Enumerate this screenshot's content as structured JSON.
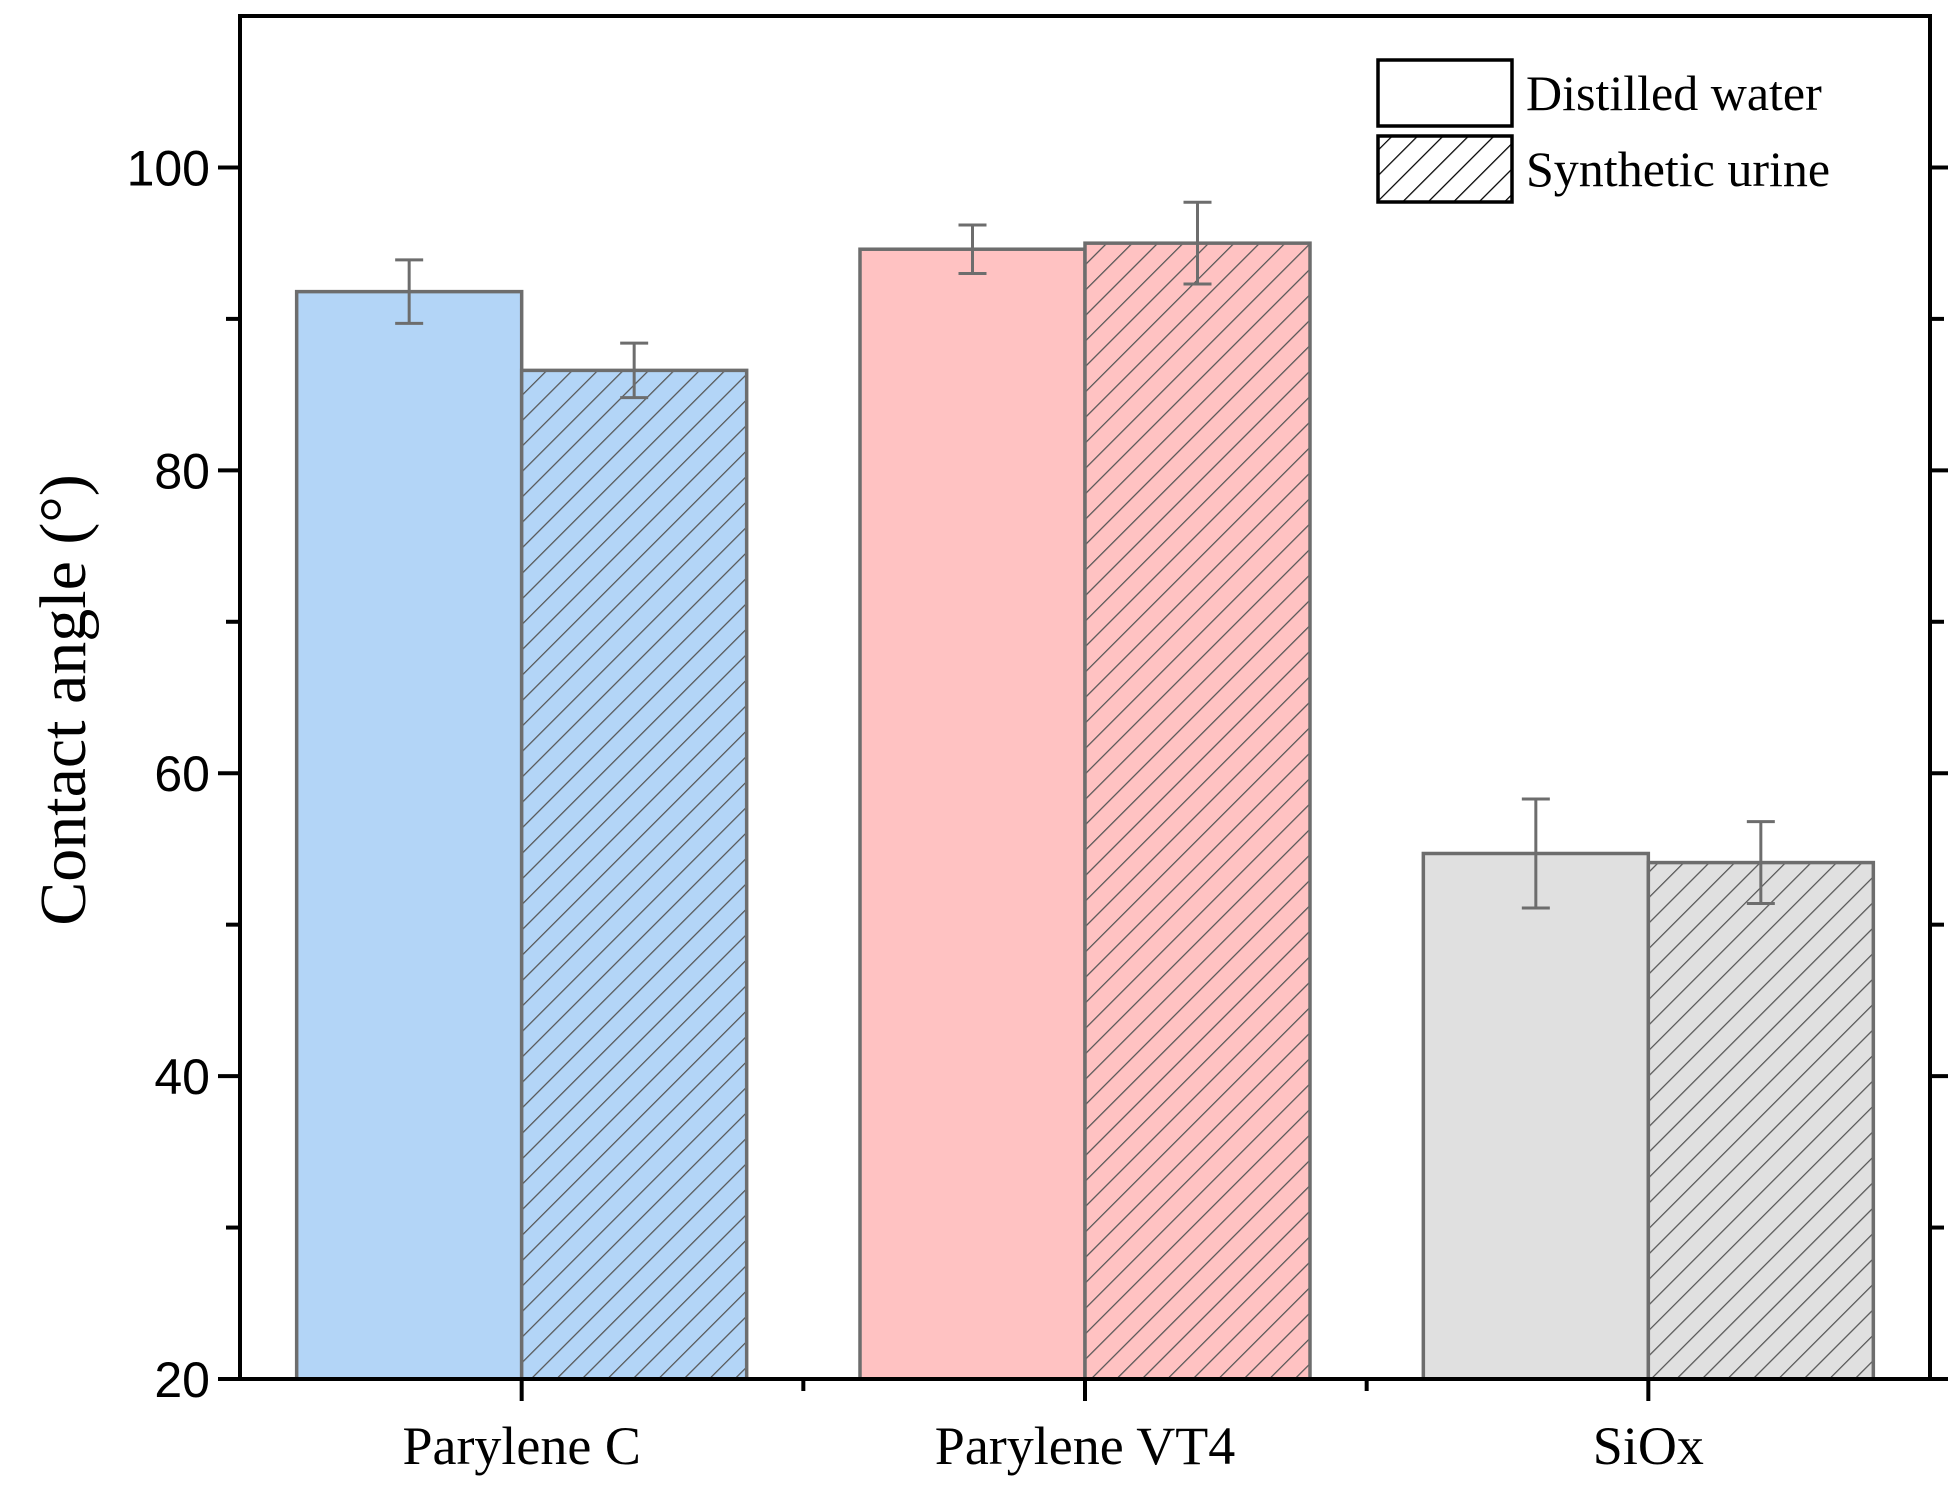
{
  "chart_data": {
    "type": "bar",
    "title": "",
    "xlabel": "",
    "ylabel": "Contact angle (°)",
    "ylim": [
      20,
      110
    ],
    "yticks": [
      20,
      40,
      60,
      80,
      100
    ],
    "categories": [
      "Parylene C",
      "Parylene VT4",
      "SiOx"
    ],
    "category_colors": [
      "#b3d5f7",
      "#ffc2c2",
      "#e0e0e0"
    ],
    "series": [
      {
        "name": "Distilled water",
        "pattern": "solid",
        "values": [
          91.8,
          94.6,
          54.7
        ],
        "errors": [
          2.1,
          1.6,
          3.6
        ]
      },
      {
        "name": "Synthetic urine",
        "pattern": "hatched",
        "values": [
          86.6,
          95.0,
          54.1
        ],
        "errors": [
          1.8,
          2.7,
          2.7
        ]
      }
    ],
    "legend_position": "top-right",
    "grid": false
  }
}
